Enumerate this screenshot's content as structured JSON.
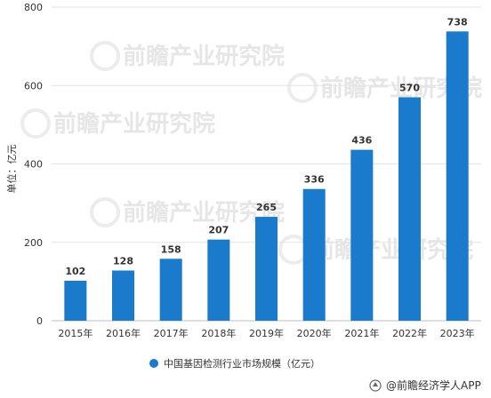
{
  "chart_data": {
    "type": "bar",
    "ylabel": "单位：亿元",
    "categories": [
      "2015年",
      "2016年",
      "2017年",
      "2018年",
      "2019年",
      "2020年",
      "2021年",
      "2022年",
      "2023年"
    ],
    "series": [
      {
        "name": "中国基因检测行业市场规模（亿元）",
        "values": [
          102,
          128,
          158,
          207,
          265,
          336,
          436,
          570,
          738
        ],
        "color": "#1a7acc"
      }
    ],
    "ylim": [
      0,
      800
    ],
    "yticks": [
      0,
      200,
      400,
      600,
      800
    ],
    "grid": true,
    "legend_position": "bottom"
  },
  "watermark": {
    "text": "前瞻产业研究院"
  },
  "source": {
    "label": "@前瞻经济学人APP"
  }
}
